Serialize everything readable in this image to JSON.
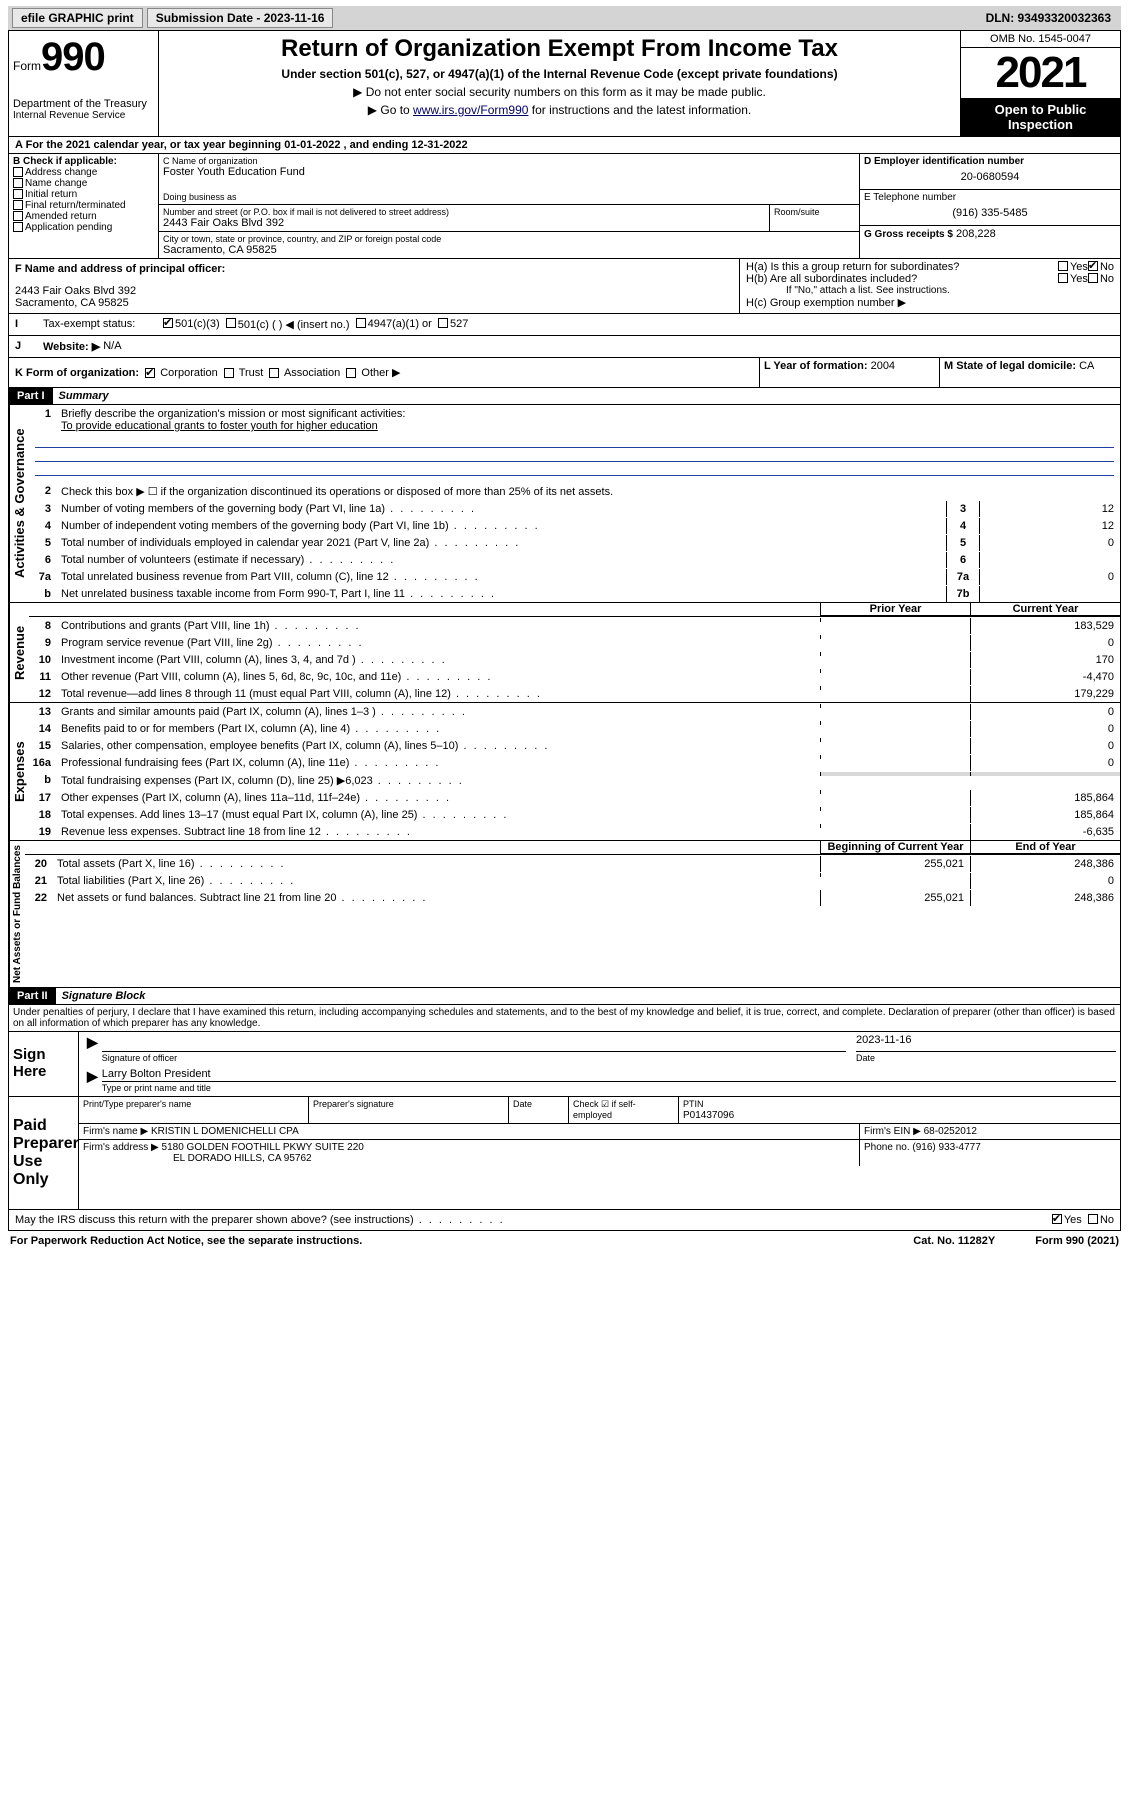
{
  "topbar": {
    "efile": "efile GRAPHIC print",
    "submission_label": "Submission Date - 2023-11-16",
    "dln": "DLN: 93493320032363"
  },
  "header": {
    "form_word": "Form",
    "form_num": "990",
    "dept": "Department of the Treasury",
    "irs": "Internal Revenue Service",
    "title": "Return of Organization Exempt From Income Tax",
    "subtitle": "Under section 501(c), 527, or 4947(a)(1) of the Internal Revenue Code (except private foundations)",
    "note1": "▶ Do not enter social security numbers on this form as it may be made public.",
    "note2_pre": "▶ Go to ",
    "note2_link": "www.irs.gov/Form990",
    "note2_post": " for instructions and the latest information.",
    "omb": "OMB No. 1545-0047",
    "year": "2021",
    "inspect": "Open to Public Inspection"
  },
  "A": {
    "text": "For the 2021 calendar year, or tax year beginning 01-01-2022  , and ending 12-31-2022"
  },
  "B": {
    "label": "B Check if applicable:",
    "items": [
      "Address change",
      "Name change",
      "Initial return",
      "Final return/terminated",
      "Amended return",
      "Application pending"
    ]
  },
  "C": {
    "label": "C Name of organization",
    "name": "Foster Youth Education Fund",
    "dba_label": "Doing business as",
    "addr_label": "Number and street (or P.O. box if mail is not delivered to street address)",
    "room_label": "Room/suite",
    "addr": "2443 Fair Oaks Blvd 392",
    "city_label": "City or town, state or province, country, and ZIP or foreign postal code",
    "city": "Sacramento, CA  95825"
  },
  "D": {
    "label": "D Employer identification number",
    "ein": "20-0680594"
  },
  "E": {
    "label": "E Telephone number",
    "phone": "(916) 335-5485"
  },
  "G": {
    "label": "G Gross receipts $",
    "amount": "208,228"
  },
  "F": {
    "label": "F  Name and address of principal officer:",
    "addr1": "2443 Fair Oaks Blvd 392",
    "addr2": "Sacramento, CA  95825"
  },
  "H": {
    "a": "H(a)  Is this a group return for subordinates?",
    "b": "H(b)  Are all subordinates included?",
    "note": "If \"No,\" attach a list. See instructions.",
    "c": "H(c)  Group exemption number ▶",
    "yes": "Yes",
    "no": "No"
  },
  "I": {
    "label": "Tax-exempt status:",
    "opts": [
      "501(c)(3)",
      "501(c) (  ) ◀ (insert no.)",
      "4947(a)(1) or",
      "527"
    ]
  },
  "J": {
    "label": "Website: ▶",
    "val": "N/A"
  },
  "K": {
    "label": "K Form of organization:",
    "opts": [
      "Corporation",
      "Trust",
      "Association",
      "Other ▶"
    ]
  },
  "L": {
    "label": "L Year of formation:",
    "val": "2004"
  },
  "M": {
    "label": "M State of legal domicile:",
    "val": "CA"
  },
  "part1": {
    "bar": "Part I",
    "title": "Summary",
    "side_gov": "Activities & Governance",
    "side_rev": "Revenue",
    "side_exp": "Expenses",
    "side_net": "Net Assets or Fund Balances",
    "l1_label": "Briefly describe the organization's mission or most significant activities:",
    "l1_text": "To provide educational grants to foster youth for higher education",
    "l2": "Check this box ▶ ☐  if the organization discontinued its operations or disposed of more than 25% of its net assets.",
    "rows_single": [
      {
        "n": "3",
        "t": "Number of voting members of the governing body (Part VI, line 1a)",
        "box": "3",
        "v": "12"
      },
      {
        "n": "4",
        "t": "Number of independent voting members of the governing body (Part VI, line 1b)",
        "box": "4",
        "v": "12"
      },
      {
        "n": "5",
        "t": "Total number of individuals employed in calendar year 2021 (Part V, line 2a)",
        "box": "5",
        "v": "0"
      },
      {
        "n": "6",
        "t": "Total number of volunteers (estimate if necessary)",
        "box": "6",
        "v": ""
      },
      {
        "n": "7a",
        "t": "Total unrelated business revenue from Part VIII, column (C), line 12",
        "box": "7a",
        "v": "0"
      },
      {
        "n": "b",
        "t": "Net unrelated business taxable income from Form 990-T, Part I, line 11",
        "box": "7b",
        "v": ""
      }
    ],
    "col_prior": "Prior Year",
    "col_current": "Current Year",
    "rev_rows": [
      {
        "n": "8",
        "t": "Contributions and grants (Part VIII, line 1h)",
        "p": "",
        "c": "183,529"
      },
      {
        "n": "9",
        "t": "Program service revenue (Part VIII, line 2g)",
        "p": "",
        "c": "0"
      },
      {
        "n": "10",
        "t": "Investment income (Part VIII, column (A), lines 3, 4, and 7d )",
        "p": "",
        "c": "170"
      },
      {
        "n": "11",
        "t": "Other revenue (Part VIII, column (A), lines 5, 6d, 8c, 9c, 10c, and 11e)",
        "p": "",
        "c": "-4,470"
      },
      {
        "n": "12",
        "t": "Total revenue—add lines 8 through 11 (must equal Part VIII, column (A), line 12)",
        "p": "",
        "c": "179,229"
      }
    ],
    "exp_rows": [
      {
        "n": "13",
        "t": "Grants and similar amounts paid (Part IX, column (A), lines 1–3 )",
        "p": "",
        "c": "0"
      },
      {
        "n": "14",
        "t": "Benefits paid to or for members (Part IX, column (A), line 4)",
        "p": "",
        "c": "0"
      },
      {
        "n": "15",
        "t": "Salaries, other compensation, employee benefits (Part IX, column (A), lines 5–10)",
        "p": "",
        "c": "0"
      },
      {
        "n": "16a",
        "t": "Professional fundraising fees (Part IX, column (A), line 11e)",
        "p": "",
        "c": "0"
      },
      {
        "n": "b",
        "t": "Total fundraising expenses (Part IX, column (D), line 25) ▶6,023",
        "p": "shade",
        "c": "shade"
      },
      {
        "n": "17",
        "t": "Other expenses (Part IX, column (A), lines 11a–11d, 11f–24e)",
        "p": "",
        "c": "185,864"
      },
      {
        "n": "18",
        "t": "Total expenses. Add lines 13–17 (must equal Part IX, column (A), line 25)",
        "p": "",
        "c": "185,864"
      },
      {
        "n": "19",
        "t": "Revenue less expenses. Subtract line 18 from line 12",
        "p": "",
        "c": "-6,635"
      }
    ],
    "col_begin": "Beginning of Current Year",
    "col_end": "End of Year",
    "net_rows": [
      {
        "n": "20",
        "t": "Total assets (Part X, line 16)",
        "p": "255,021",
        "c": "248,386"
      },
      {
        "n": "21",
        "t": "Total liabilities (Part X, line 26)",
        "p": "",
        "c": "0"
      },
      {
        "n": "22",
        "t": "Net assets or fund balances. Subtract line 21 from line 20",
        "p": "255,021",
        "c": "248,386"
      }
    ]
  },
  "part2": {
    "bar": "Part II",
    "title": "Signature Block",
    "decl": "Under penalties of perjury, I declare that I have examined this return, including accompanying schedules and statements, and to the best of my knowledge and belief, it is true, correct, and complete. Declaration of preparer (other than officer) is based on all information of which preparer has any knowledge.",
    "sign_here": "Sign Here",
    "sig_officer": "Signature of officer",
    "date": "Date",
    "sig_date": "2023-11-16",
    "officer_name": "Larry Bolton  President",
    "officer_label": "Type or print name and title",
    "paid": "Paid Preparer Use Only",
    "p_name_label": "Print/Type preparer's name",
    "p_sig_label": "Preparer's signature",
    "p_date_label": "Date",
    "p_check_label": "Check ☑ if self-employed",
    "ptin_label": "PTIN",
    "ptin": "P01437096",
    "firm_name_label": "Firm's name   ▶",
    "firm_name": "KRISTIN L DOMENICHELLI CPA",
    "firm_ein_label": "Firm's EIN ▶",
    "firm_ein": "68-0252012",
    "firm_addr_label": "Firm's address ▶",
    "firm_addr1": "5180 GOLDEN FOOTHILL PKWY SUITE 220",
    "firm_addr2": "EL DORADO HILLS, CA  95762",
    "firm_phone_label": "Phone no.",
    "firm_phone": "(916) 933-4777",
    "discuss": "May the IRS discuss this return with the preparer shown above? (see instructions)",
    "yes": "Yes",
    "no": "No"
  },
  "footer": {
    "pra": "For Paperwork Reduction Act Notice, see the separate instructions.",
    "cat": "Cat. No. 11282Y",
    "form": "Form 990 (2021)"
  }
}
